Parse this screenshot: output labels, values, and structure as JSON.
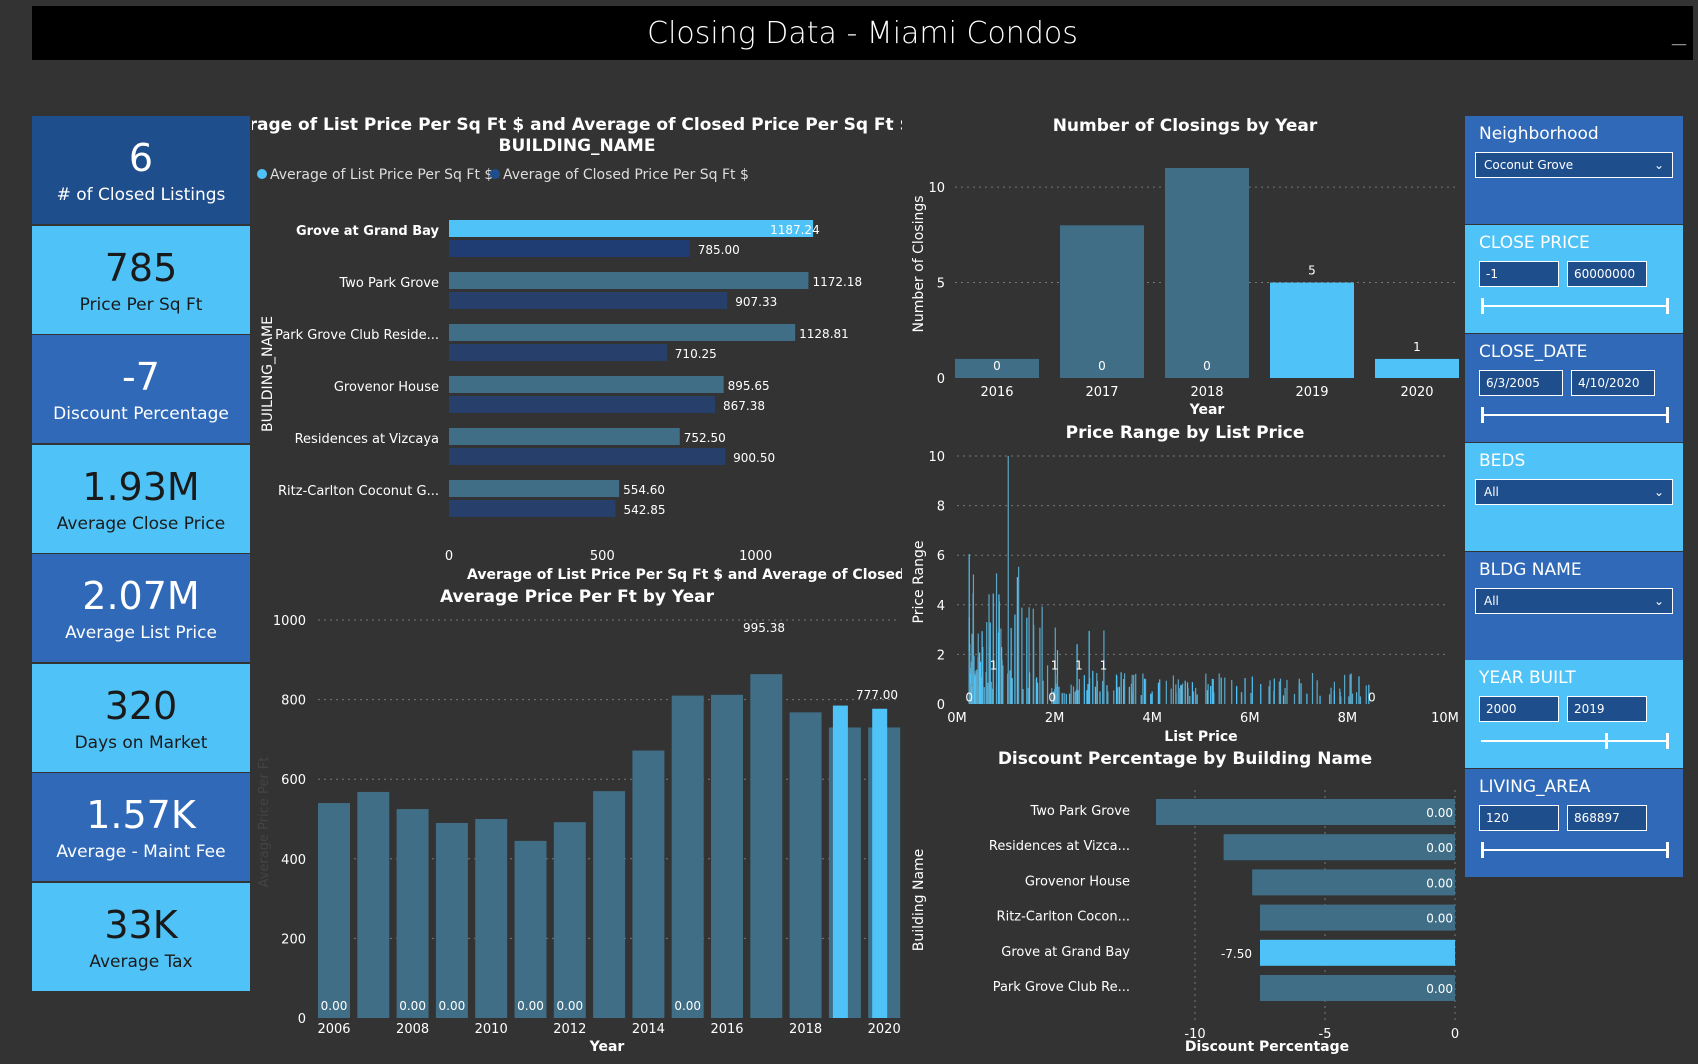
{
  "title": "Closing Data - Miami Condos",
  "kpis": [
    {
      "value": "6",
      "label": "# of Closed Listings",
      "style": "dark"
    },
    {
      "value": "785",
      "label": "Price Per Sq Ft",
      "style": "light"
    },
    {
      "value": "-7",
      "label": "Discount Percentage",
      "style": "darkblue"
    },
    {
      "value": "1.93M",
      "label": "Average Close Price",
      "style": "light"
    },
    {
      "value": "2.07M",
      "label": "Average List Price",
      "style": "darkblue"
    },
    {
      "value": "320",
      "label": "Days on Market",
      "style": "light"
    },
    {
      "value": "1.57K",
      "label": "Average - Maint Fee",
      "style": "darkblue"
    },
    {
      "value": "33K",
      "label": "Average Tax",
      "style": "light"
    }
  ],
  "slicers": {
    "neighborhood": {
      "title": "Neighborhood",
      "value": "Coconut Grove"
    },
    "close_price": {
      "title": "CLOSE PRICE",
      "min": "-1",
      "max": "60000000"
    },
    "close_date": {
      "title": "CLOSE_DATE",
      "min": "6/3/2005",
      "max": "4/10/2020"
    },
    "beds": {
      "title": "BEDS",
      "value": "All"
    },
    "bldg_name": {
      "title": "BLDG NAME",
      "value": "All"
    },
    "year_built": {
      "title": "YEAR BUILT",
      "min": "2000",
      "max": "2019"
    },
    "living_area": {
      "title": "LIVING_AREA",
      "min": "120",
      "max": "868897"
    }
  },
  "colors": {
    "light": "#4fc3f7",
    "dark": "#1f4e8c",
    "bar": "#3f6e86",
    "navy": "#27406b"
  },
  "chart_data": [
    {
      "id": "bld",
      "type": "bar",
      "orientation": "horizontal",
      "title": "Average of List Price Per Sq Ft $ and Average of Closed Price Per Sq Ft $ by BUILDING_NAME",
      "ylabel": "BUILDING_NAME",
      "xlabel": "Average of List Price Per Sq Ft $ and Average of Closed Pr...",
      "xlim": [
        0,
        1200
      ],
      "xticks": [
        "0",
        "500",
        "1000"
      ],
      "legend": "top-left",
      "categories": [
        "Grove at Grand Bay",
        "Two Park Grove",
        "Park Grove Club Reside...",
        "Grovenor House",
        "Residences at Vizcaya",
        "Ritz-Carlton Coconut G..."
      ],
      "series": [
        {
          "name": "Average of List Price Per Sq Ft $",
          "values": [
            1187.24,
            1172.18,
            1128.81,
            895.65,
            752.5,
            554.6
          ],
          "labels": [
            "1187.24",
            "1172.18",
            "1128.81",
            "895.65",
            "752.50",
            "554.60"
          ]
        },
        {
          "name": "Average of Closed Price Per Sq Ft $",
          "values": [
            785.0,
            907.33,
            710.25,
            867.38,
            900.5,
            542.85
          ],
          "labels": [
            "785.00",
            "907.33",
            "710.25",
            "867.38",
            "900.50",
            "542.85"
          ]
        }
      ]
    },
    {
      "id": "ppf",
      "type": "bar",
      "title": "Average Price Per Ft by Year",
      "xlabel": "Year",
      "ylabel": "Average Price Per Ft",
      "ylim": [
        0,
        1000
      ],
      "yticks": [
        "0",
        "200",
        "400",
        "600",
        "800",
        "1000"
      ],
      "xticks": [
        "2006",
        "2008",
        "2010",
        "2012",
        "2014",
        "2016",
        "2018",
        "2020"
      ],
      "grid": true,
      "bars": [
        {
          "v": 540,
          "hl": false,
          "label": "0.00"
        },
        {
          "v": 568,
          "hl": false,
          "label": ""
        },
        {
          "v": 525,
          "hl": false,
          "label": "0.00"
        },
        {
          "v": 490,
          "hl": false,
          "label": "0.00"
        },
        {
          "v": 500,
          "hl": false,
          "label": ""
        },
        {
          "v": 445,
          "hl": false,
          "label": "0.00"
        },
        {
          "v": 492,
          "hl": false,
          "label": "0.00"
        },
        {
          "v": 570,
          "hl": false,
          "label": ""
        },
        {
          "v": 672,
          "hl": false,
          "label": ""
        },
        {
          "v": 810,
          "hl": false,
          "label": "0.00"
        },
        {
          "v": 812,
          "hl": false,
          "label": ""
        },
        {
          "v": 864,
          "hl": false,
          "label": ""
        },
        {
          "v": 768,
          "hl": false,
          "label": ""
        },
        {
          "v": 785,
          "hl": true,
          "label": ""
        },
        {
          "v": 777,
          "hl": true,
          "label": ""
        }
      ],
      "annotations": [
        {
          "text": "995.38"
        },
        {
          "text": "777.00"
        }
      ]
    },
    {
      "id": "cby",
      "type": "bar",
      "title": "Number of Closings by Year",
      "xlabel": "Year",
      "ylabel": "Number of Closings",
      "ylim": [
        0,
        11
      ],
      "yticks": [
        "0",
        "5",
        "10"
      ],
      "grid": true,
      "categories": [
        "2016",
        "2017",
        "2018",
        "2019",
        "2020"
      ],
      "values": [
        1,
        8,
        11,
        5,
        1
      ],
      "labels": [
        "0",
        "0",
        "0",
        "5",
        "1"
      ],
      "highlight": [
        false,
        false,
        false,
        true,
        true
      ]
    },
    {
      "id": "prlp",
      "type": "bar",
      "title": "Price Range by List Price",
      "xlabel": "List Price",
      "ylabel": "Price Range",
      "xlim": [
        0,
        10
      ],
      "ylim": [
        0,
        10
      ],
      "xticks": [
        "0M",
        "2M",
        "4M",
        "6M",
        "8M",
        "10M"
      ],
      "yticks": [
        "0",
        "2",
        "4",
        "6",
        "8",
        "10"
      ],
      "grid": true,
      "data_labels": [
        "0",
        "1",
        "1",
        "1",
        "1",
        "0",
        "0"
      ]
    },
    {
      "id": "dpb",
      "type": "bar",
      "orientation": "horizontal",
      "title": "Discount Percentage by Building Name",
      "xlabel": "Discount Percentage",
      "ylabel": "Building Name",
      "xlim": [
        -12,
        0
      ],
      "xticks": [
        "-10",
        "-5",
        "0"
      ],
      "grid": true,
      "categories": [
        "Two Park Grove",
        "Residences at Vizca...",
        "Grovenor House",
        "Ritz-Carlton Cocon...",
        "Grove at Grand Bay",
        "Park Grove Club Re..."
      ],
      "values": [
        -11.5,
        -8.9,
        -7.8,
        -7.5,
        -7.5,
        -7.5
      ],
      "labels": [
        "0.00",
        "0.00",
        "0.00",
        "0.00",
        "-7.50",
        "0.00"
      ],
      "highlight": [
        false,
        false,
        false,
        false,
        true,
        false
      ]
    }
  ]
}
